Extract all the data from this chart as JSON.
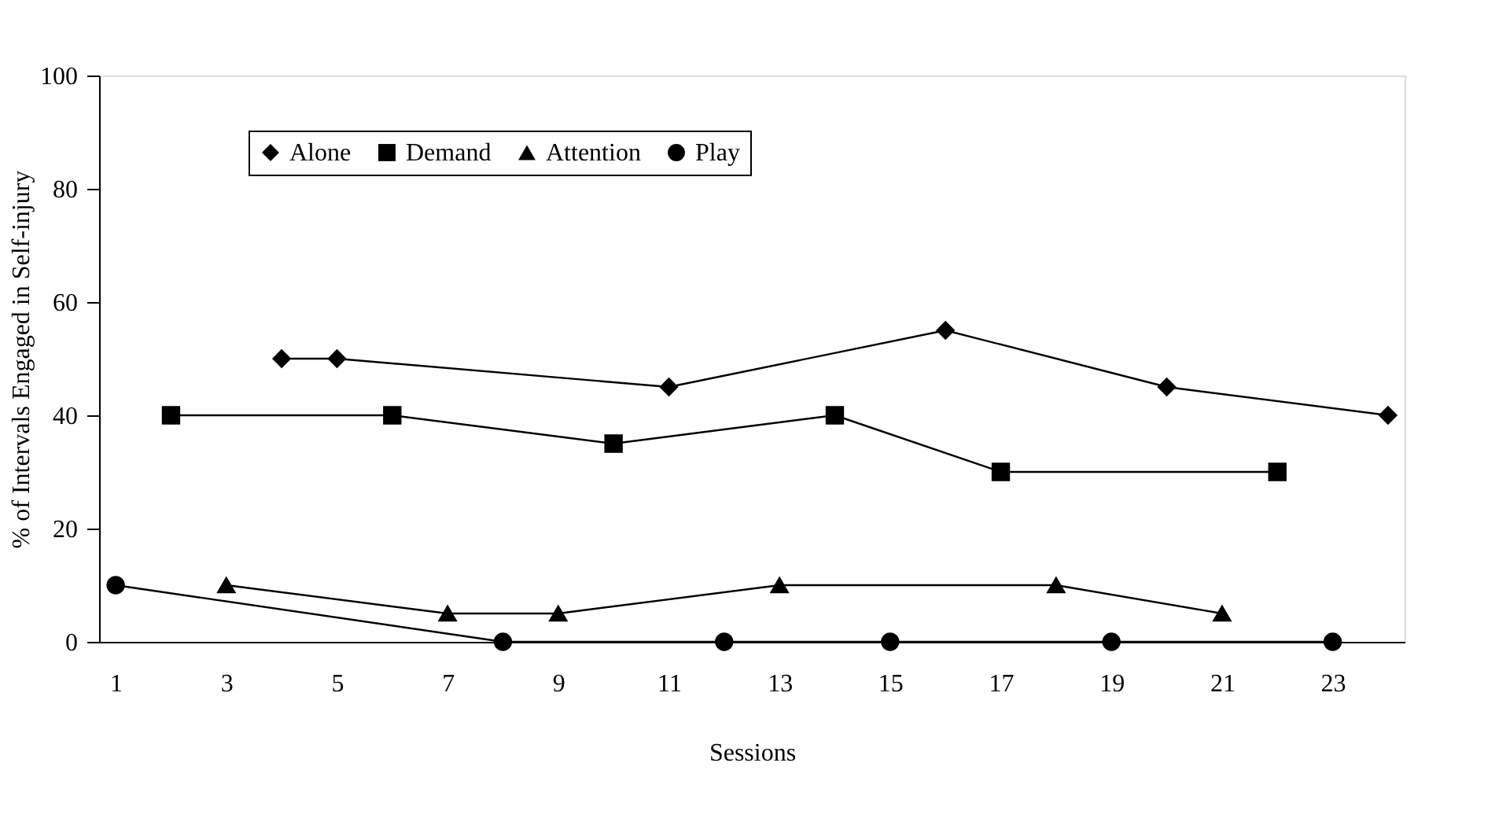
{
  "chart_data": {
    "type": "line",
    "xlabel": "Sessions",
    "ylabel": "% of Intervals Engaged in Self-injury",
    "xlim": [
      0.7,
      24.3
    ],
    "xticks": [
      1,
      3,
      5,
      7,
      9,
      11,
      13,
      15,
      17,
      19,
      21,
      23
    ],
    "ylim": [
      0,
      100
    ],
    "yticks": [
      0,
      20,
      40,
      60,
      80,
      100
    ],
    "grid": false,
    "legend": "top",
    "line_style": "solid",
    "series": [
      {
        "name": "Alone",
        "color": "#000000",
        "marker": "diamond",
        "x": [
          4,
          5,
          11,
          16,
          20,
          24
        ],
        "values": [
          50,
          50,
          45,
          55,
          45,
          40
        ]
      },
      {
        "name": "Demand",
        "color": "#000000",
        "marker": "square",
        "x": [
          2,
          6,
          10,
          14,
          17,
          22
        ],
        "values": [
          40,
          40,
          35,
          40,
          30,
          30
        ]
      },
      {
        "name": "Attention",
        "color": "#000000",
        "marker": "triangle",
        "x": [
          3,
          7,
          9,
          13,
          18,
          21
        ],
        "values": [
          10,
          5,
          5,
          10,
          10,
          5
        ]
      },
      {
        "name": "Play",
        "color": "#000000",
        "marker": "circle",
        "x": [
          1,
          8,
          12,
          15,
          19,
          23
        ],
        "values": [
          10,
          0,
          0,
          0,
          0,
          0
        ]
      }
    ]
  }
}
